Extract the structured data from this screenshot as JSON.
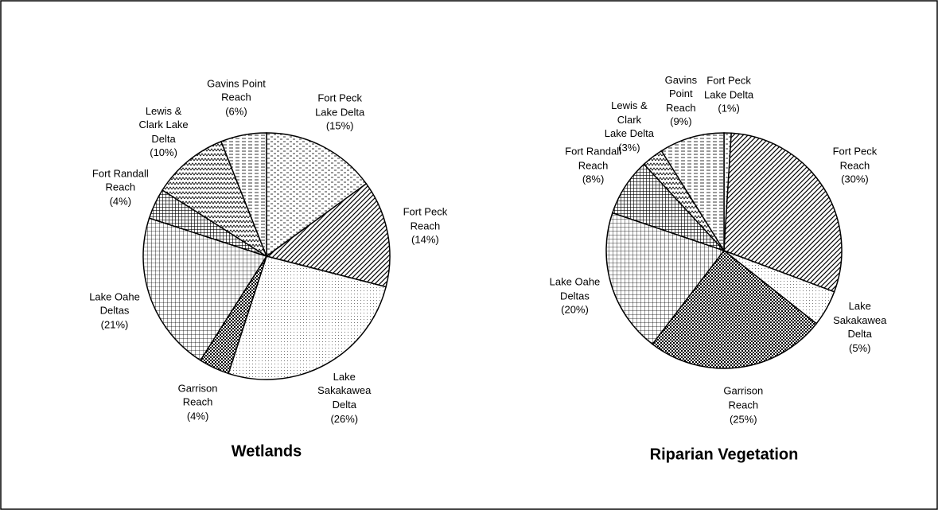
{
  "chart_data": [
    {
      "type": "pie",
      "title": "Wetlands",
      "categories": [
        "Fort Peck\nLake Delta",
        "Fort Peck\nReach",
        "Lake\nSakakawea\nDelta",
        "Garrison\nReach",
        "Lake Oahe\nDeltas",
        "Fort Randall\nReach",
        "Lewis &\nClark Lake\nDelta",
        "Gavins Point\nReach"
      ],
      "values": [
        15,
        14,
        26,
        4,
        21,
        4,
        10,
        6
      ],
      "value_labels": [
        "(15%)",
        "(14%)",
        "(26%)",
        "(4%)",
        "(21%)",
        "(4%)",
        "(10%)",
        "(6%)"
      ]
    },
    {
      "type": "pie",
      "title": "Riparian Vegetation",
      "categories": [
        "Fort Peck\nLake Delta",
        "Fort Peck\nReach",
        "Lake\nSakakawea\nDelta",
        "Garrison\nReach",
        "Lake Oahe\nDeltas",
        "Fort Randall\nReach",
        "Lewis &\nClark\nLake Delta",
        "Gavins\nPoint\nReach"
      ],
      "values": [
        1,
        30,
        5,
        25,
        20,
        8,
        3,
        9
      ],
      "value_labels": [
        "(1%)",
        "(30%)",
        "(5%)",
        "(25%)",
        "(20%)",
        "(8%)",
        "(3%)",
        "(9%)"
      ]
    }
  ]
}
